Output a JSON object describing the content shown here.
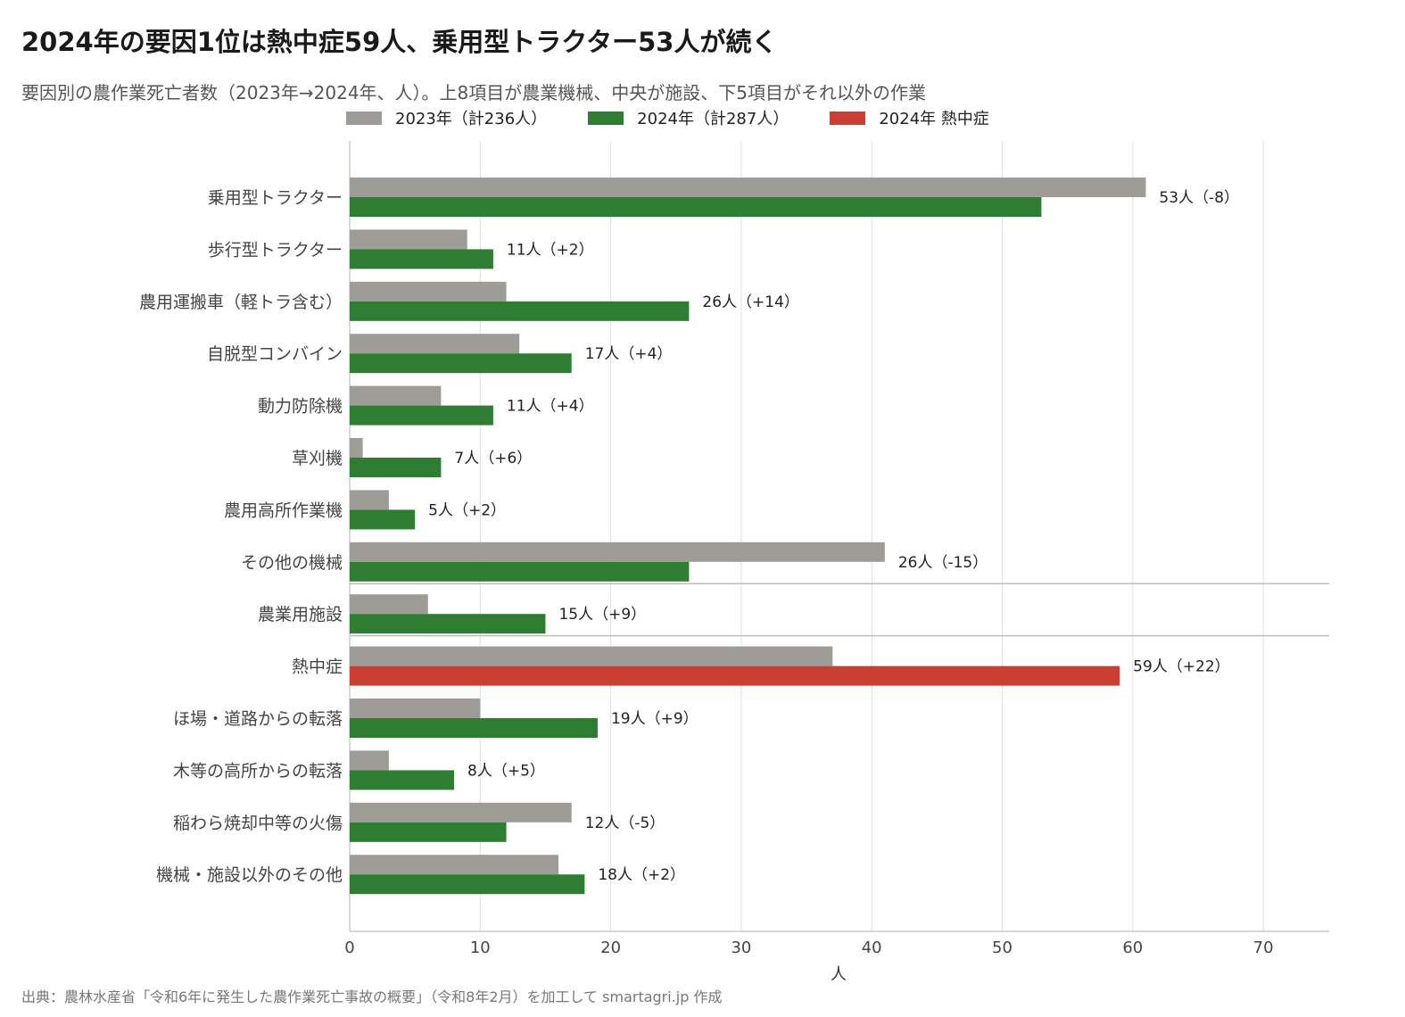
{
  "title": "2024年の要因1位は熱中症59人、乗用型トラクター53人が続く",
  "subtitle": "要因別の農作業死亡者数（2023年→2024年、人）。上8項目が農業機械、中央が施設、下5項目がそれ以外の作業",
  "source": "出典：農林水産省「令和6年に発生した農作業死亡事故の概要」（令和8年2月）を加工して smartagri.jp 作成",
  "colors": {
    "gray": "#9d9c97",
    "green": "#2e7d32",
    "red": "#c94032",
    "grid": "#e0e0e0",
    "axis": "#bdbdbd"
  },
  "chart_data": {
    "type": "bar",
    "orientation": "horizontal",
    "categories": [
      "乗用型トラクター",
      "歩行型トラクター",
      "農用運搬車（軽トラ含む）",
      "自脱型コンバイン",
      "動力防除機",
      "草刈機",
      "農用高所作業機",
      "その他の機械",
      "農業用施設",
      "熱中症",
      "ほ場・道路からの転落",
      "木等の高所からの転落",
      "稲わら焼却中等の火傷",
      "機械・施設以外のその他"
    ],
    "series": [
      {
        "name": "2023年（計236人）",
        "color": "#9d9c97",
        "values": [
          61,
          9,
          12,
          13,
          7,
          1,
          3,
          41,
          6,
          37,
          10,
          3,
          17,
          16
        ]
      },
      {
        "name": "2024年（計287人）",
        "color": "#2e7d32",
        "values": [
          53,
          11,
          26,
          17,
          11,
          7,
          5,
          26,
          15,
          59,
          19,
          8,
          12,
          18
        ]
      }
    ],
    "highlight": {
      "name": "2024年 熱中症",
      "category": "熱中症",
      "color": "#c94032"
    },
    "data_labels": [
      "53人（-8）",
      "11人（+2）",
      "26人（+14）",
      "17人（+4）",
      "11人（+4）",
      "7人（+6）",
      "5人（+2）",
      "26人（-15）",
      "15人（+9）",
      "59人（+22）",
      "19人（+9）",
      "8人（+5）",
      "12人（-5）",
      "18人（+2）"
    ],
    "group_separators_after": [
      "その他の機械",
      "農業用施設"
    ],
    "xlabel": "人",
    "xlim": [
      0,
      75
    ],
    "xticks": [
      0,
      10,
      20,
      30,
      40,
      50,
      60,
      70
    ],
    "grid": "vertical",
    "legend_position": "top"
  }
}
